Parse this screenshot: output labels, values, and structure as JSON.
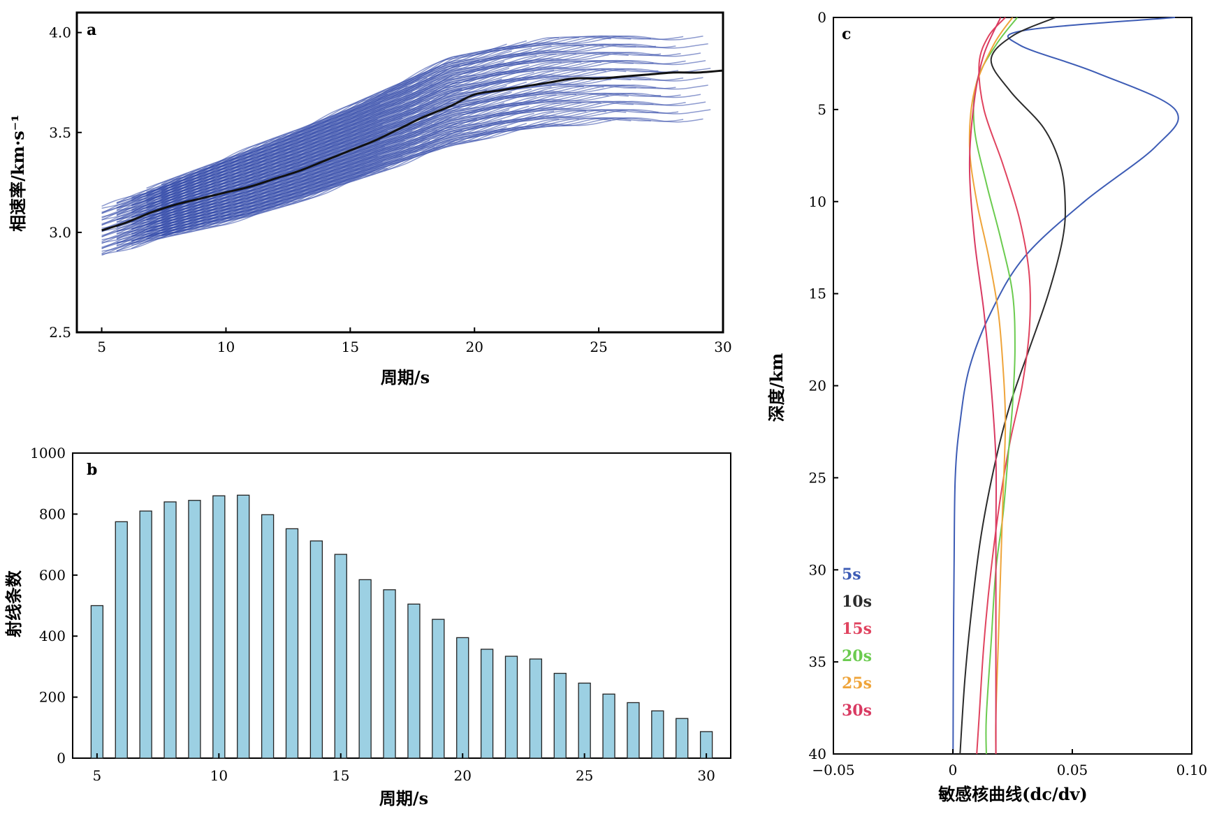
{
  "chart_data": [
    {
      "panel_label": "a",
      "type": "line",
      "xlabel": "周期/s",
      "ylabel": "相速率/km·s⁻¹",
      "xlim": [
        4,
        30
      ],
      "ylim": [
        2.5,
        4.1
      ],
      "xticks": [
        5,
        10,
        15,
        20,
        25,
        30
      ],
      "yticks": [
        2.5,
        3.0,
        3.5,
        4.0
      ],
      "ytick_labels": [
        "2.5",
        "3.0",
        "3.5",
        "4.0"
      ],
      "grid": false,
      "line_color": "#2F47A8",
      "mean_color": "#111111",
      "envelope": {
        "periods": [
          5,
          7,
          9,
          11,
          13,
          15,
          17,
          19,
          21,
          23,
          25,
          27,
          30
        ],
        "lower": [
          2.88,
          2.96,
          3.02,
          3.08,
          3.16,
          3.25,
          3.34,
          3.43,
          3.49,
          3.53,
          3.55,
          3.56,
          3.56
        ],
        "upper": [
          3.13,
          3.22,
          3.32,
          3.42,
          3.52,
          3.63,
          3.75,
          3.87,
          3.93,
          3.97,
          3.99,
          4.0,
          4.0
        ]
      },
      "series": [
        {
          "values": [
            {
              "x": 5,
              "y": 3.01
            },
            {
              "x": 6,
              "y": 3.05
            },
            {
              "x": 7,
              "y": 3.1
            },
            {
              "x": 8,
              "y": 3.14
            },
            {
              "x": 9,
              "y": 3.17
            },
            {
              "x": 10,
              "y": 3.2
            },
            {
              "x": 11,
              "y": 3.23
            },
            {
              "x": 12,
              "y": 3.27
            },
            {
              "x": 13,
              "y": 3.31
            },
            {
              "x": 14,
              "y": 3.36
            },
            {
              "x": 15,
              "y": 3.41
            },
            {
              "x": 16,
              "y": 3.46
            },
            {
              "x": 17,
              "y": 3.52
            },
            {
              "x": 18,
              "y": 3.58
            },
            {
              "x": 19,
              "y": 3.63
            },
            {
              "x": 20,
              "y": 3.69
            },
            {
              "x": 21,
              "y": 3.71
            },
            {
              "x": 22,
              "y": 3.73
            },
            {
              "x": 23,
              "y": 3.75
            },
            {
              "x": 24,
              "y": 3.77
            },
            {
              "x": 25,
              "y": 3.77
            },
            {
              "x": 26,
              "y": 3.78
            },
            {
              "x": 27,
              "y": 3.79
            },
            {
              "x": 28,
              "y": 3.8
            },
            {
              "x": 29,
              "y": 3.8
            },
            {
              "x": 30,
              "y": 3.81
            }
          ]
        }
      ]
    },
    {
      "panel_label": "b",
      "type": "bar",
      "xlabel": "周期/s",
      "ylabel": "射线条数",
      "xlim": [
        4,
        31
      ],
      "ylim": [
        0,
        1000
      ],
      "xticks": [
        5,
        10,
        15,
        20,
        25,
        30
      ],
      "yticks": [
        0,
        200,
        400,
        600,
        800,
        1000
      ],
      "grid": false,
      "bar_color": "#9CD0E3",
      "categories": [
        5,
        6,
        7,
        8,
        9,
        10,
        11,
        12,
        13,
        14,
        15,
        16,
        17,
        18,
        19,
        20,
        21,
        22,
        23,
        24,
        25,
        26,
        27,
        28,
        29,
        30
      ],
      "values": [
        500,
        775,
        810,
        840,
        845,
        860,
        862,
        798,
        752,
        712,
        668,
        585,
        552,
        505,
        455,
        395,
        357,
        334,
        325,
        278,
        246,
        210,
        182,
        155,
        130,
        87
      ]
    },
    {
      "panel_label": "c",
      "type": "line",
      "xlabel": "敏感核曲线(dc/dv)",
      "ylabel": "深度/km",
      "xlim": [
        -0.05,
        0.1
      ],
      "ylim": [
        0,
        40
      ],
      "y_inverted": true,
      "xticks": [
        -0.05,
        0,
        0.05,
        0.1
      ],
      "xtick_labels": [
        "−0.05",
        "0",
        "0.05",
        "0.10"
      ],
      "yticks": [
        0,
        5,
        10,
        15,
        20,
        25,
        30,
        35,
        40
      ],
      "grid": false,
      "legend_position": "bottom-left",
      "series": [
        {
          "name": "5s",
          "color": "#3D5CB5",
          "depth": [
            0,
            0.7,
            1.5,
            3,
            5,
            7,
            10,
            13,
            16,
            19,
            22,
            25,
            30,
            35,
            40
          ],
          "value": [
            0.093,
            0.03,
            0.028,
            0.06,
            0.093,
            0.085,
            0.055,
            0.03,
            0.016,
            0.007,
            0.003,
            0.001,
            0.0005,
            0.0002,
            0.0001
          ]
        },
        {
          "name": "10s",
          "color": "#2B2B2B",
          "depth": [
            0,
            1,
            2.3,
            4,
            6,
            8,
            10,
            12,
            15,
            18,
            21,
            24,
            28,
            32,
            36,
            40
          ],
          "value": [
            0.043,
            0.025,
            0.016,
            0.024,
            0.038,
            0.045,
            0.047,
            0.046,
            0.04,
            0.032,
            0.024,
            0.018,
            0.012,
            0.008,
            0.005,
            0.003
          ]
        },
        {
          "name": "15s",
          "color": "#E0435F",
          "depth": [
            0,
            1,
            2.5,
            5,
            8,
            11,
            14,
            17,
            20,
            23,
            26,
            30,
            34,
            38,
            40
          ],
          "value": [
            0.022,
            0.015,
            0.011,
            0.013,
            0.021,
            0.028,
            0.032,
            0.032,
            0.029,
            0.024,
            0.02,
            0.016,
            0.013,
            0.011,
            0.01
          ]
        },
        {
          "name": "20s",
          "color": "#6BCB4F",
          "depth": [
            0,
            1.5,
            3.5,
            6,
            9,
            12,
            15,
            18,
            21,
            24,
            27,
            30,
            34,
            38,
            40
          ],
          "value": [
            0.027,
            0.018,
            0.01,
            0.009,
            0.014,
            0.02,
            0.025,
            0.026,
            0.025,
            0.023,
            0.021,
            0.018,
            0.016,
            0.014,
            0.014
          ]
        },
        {
          "name": "25s",
          "color": "#EFA43A",
          "depth": [
            0,
            1.5,
            4,
            7,
            10,
            13,
            16,
            19,
            22,
            26,
            30,
            34,
            38,
            40
          ],
          "value": [
            0.025,
            0.017,
            0.009,
            0.007,
            0.01,
            0.015,
            0.019,
            0.021,
            0.022,
            0.021,
            0.02,
            0.019,
            0.018,
            0.018
          ]
        },
        {
          "name": "30s",
          "color": "#D93A62",
          "depth": [
            0,
            2,
            4.5,
            8,
            12,
            16,
            20,
            24,
            28,
            32,
            36,
            40
          ],
          "value": [
            0.02,
            0.013,
            0.009,
            0.007,
            0.009,
            0.013,
            0.016,
            0.018,
            0.018,
            0.018,
            0.018,
            0.018
          ]
        }
      ]
    }
  ]
}
